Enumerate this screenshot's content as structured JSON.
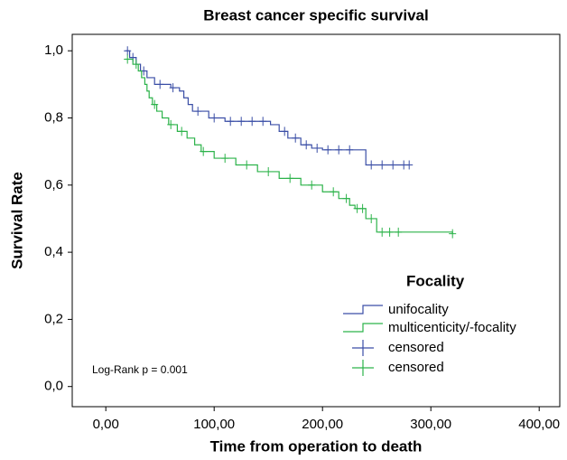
{
  "chart_data": {
    "type": "km",
    "title": "Breast cancer specific survival",
    "x_label": "Time from operation to death",
    "y_label": "Survival Rate",
    "annotation": "Log-Rank p = 0.001",
    "legend_title": "Focality",
    "xlim": [
      -31,
      419
    ],
    "ylim": [
      -0.06,
      1.049
    ],
    "xticks": [
      {
        "value": 0,
        "label": "0,00"
      },
      {
        "value": 100,
        "label": "100,00"
      },
      {
        "value": 200,
        "label": "200,00"
      },
      {
        "value": 300,
        "label": "300,00"
      },
      {
        "value": 400,
        "label": "400,00"
      }
    ],
    "yticks": [
      {
        "value": 0,
        "label": "0,0"
      },
      {
        "value": 0.2,
        "label": "0,2"
      },
      {
        "value": 0.4,
        "label": "0,4"
      },
      {
        "value": 0.6,
        "label": "0,6"
      },
      {
        "value": 0.8,
        "label": "0,8"
      },
      {
        "value": 1.0,
        "label": "1,0"
      }
    ],
    "series": [
      {
        "name": "unifocality",
        "color": "#3a4ea6",
        "censored_label": "censored",
        "x": [
          18,
          22,
          28,
          32,
          38,
          45,
          60,
          68,
          72,
          76,
          80,
          95,
          110,
          152,
          160,
          168,
          180,
          190,
          200,
          240,
          280
        ],
        "values": [
          1.0,
          0.98,
          0.96,
          0.94,
          0.92,
          0.9,
          0.89,
          0.88,
          0.86,
          0.84,
          0.82,
          0.8,
          0.79,
          0.78,
          0.76,
          0.74,
          0.72,
          0.71,
          0.705,
          0.66,
          0.66
        ],
        "censored_x": [
          20,
          25,
          35,
          50,
          62,
          85,
          100,
          115,
          125,
          135,
          145,
          165,
          175,
          185,
          195,
          205,
          215,
          225,
          245,
          255,
          265,
          275,
          280
        ],
        "censored_values": [
          1.0,
          0.98,
          0.94,
          0.9,
          0.89,
          0.82,
          0.8,
          0.79,
          0.79,
          0.79,
          0.79,
          0.76,
          0.74,
          0.72,
          0.71,
          0.705,
          0.705,
          0.705,
          0.66,
          0.66,
          0.66,
          0.66,
          0.66
        ]
      },
      {
        "name": "multicenticity/-focality",
        "color": "#2cb34a",
        "censored_label": "censored",
        "x": [
          18,
          25,
          30,
          33,
          36,
          38,
          40,
          43,
          47,
          52,
          58,
          66,
          75,
          82,
          88,
          100,
          120,
          140,
          160,
          180,
          200,
          215,
          225,
          230,
          240,
          250,
          320
        ],
        "values": [
          0.975,
          0.96,
          0.94,
          0.92,
          0.9,
          0.88,
          0.86,
          0.84,
          0.82,
          0.8,
          0.78,
          0.76,
          0.74,
          0.72,
          0.7,
          0.68,
          0.66,
          0.64,
          0.62,
          0.6,
          0.58,
          0.56,
          0.54,
          0.53,
          0.5,
          0.46,
          0.455
        ],
        "censored_x": [
          20,
          28,
          45,
          60,
          70,
          90,
          110,
          130,
          150,
          170,
          190,
          210,
          222,
          232,
          237,
          245,
          255,
          262,
          270,
          320
        ],
        "censored_values": [
          0.975,
          0.96,
          0.84,
          0.78,
          0.76,
          0.7,
          0.68,
          0.66,
          0.64,
          0.62,
          0.6,
          0.58,
          0.56,
          0.53,
          0.53,
          0.5,
          0.46,
          0.46,
          0.46,
          0.455
        ]
      }
    ]
  }
}
